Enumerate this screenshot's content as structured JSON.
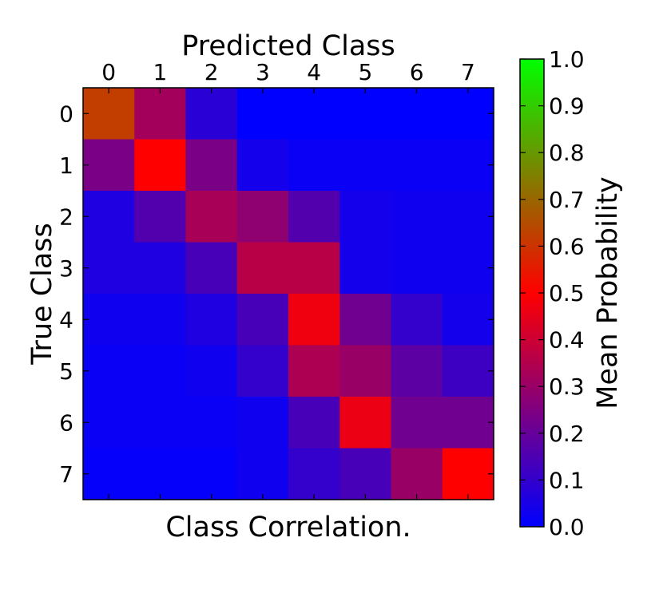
{
  "chart_data": {
    "type": "heatmap",
    "title": "",
    "xlabel_top": "Predicted Class",
    "xlabel_bottom": "Class Correlation.",
    "ylabel": "True Class",
    "x_categories": [
      "0",
      "1",
      "2",
      "3",
      "4",
      "5",
      "6",
      "7"
    ],
    "y_categories": [
      "0",
      "1",
      "2",
      "3",
      "4",
      "5",
      "6",
      "7"
    ],
    "values": [
      [
        0.62,
        0.32,
        0.08,
        0.0,
        0.0,
        0.0,
        0.0,
        0.0
      ],
      [
        0.24,
        0.5,
        0.24,
        0.04,
        0.02,
        0.02,
        0.02,
        0.02
      ],
      [
        0.06,
        0.16,
        0.33,
        0.28,
        0.16,
        0.04,
        0.03,
        0.03
      ],
      [
        0.06,
        0.06,
        0.14,
        0.36,
        0.36,
        0.04,
        0.03,
        0.03
      ],
      [
        0.03,
        0.03,
        0.06,
        0.14,
        0.47,
        0.22,
        0.1,
        0.04
      ],
      [
        0.02,
        0.02,
        0.03,
        0.1,
        0.34,
        0.3,
        0.18,
        0.12
      ],
      [
        0.02,
        0.02,
        0.02,
        0.03,
        0.14,
        0.46,
        0.22,
        0.22
      ],
      [
        0.01,
        0.01,
        0.01,
        0.03,
        0.1,
        0.14,
        0.3,
        0.5
      ]
    ],
    "colorbar": {
      "label": "Mean Probability",
      "range": [
        0.0,
        1.0
      ],
      "ticks": [
        "0.0",
        "0.1",
        "0.2",
        "0.3",
        "0.4",
        "0.5",
        "0.6",
        "0.7",
        "0.8",
        "0.9",
        "1.0"
      ],
      "colormap": [
        "#0000ff",
        "#ff0000",
        "#00ff00"
      ]
    }
  }
}
